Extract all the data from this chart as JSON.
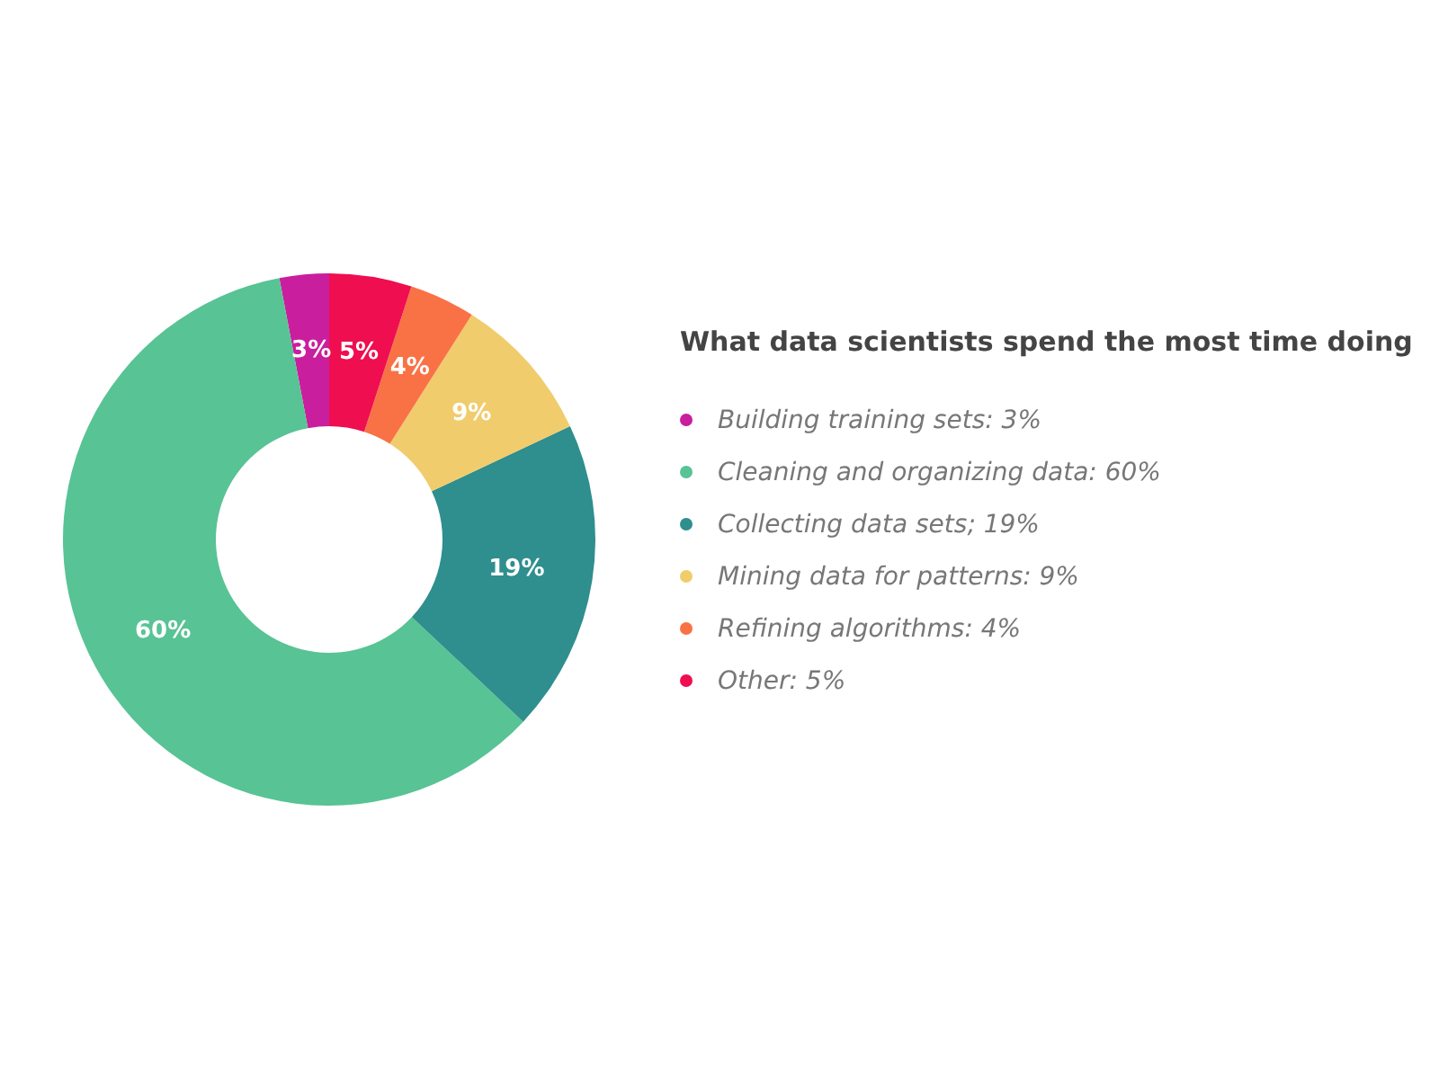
{
  "chart_data": {
    "type": "donut",
    "title": "What data scientists spend the most time doing",
    "categories": [
      "Building training sets: 3%",
      "Cleaning and organizing data: 60%",
      "Collecting data sets; 19%",
      "Mining data for patterns: 9%",
      "Refining algorithms: 4%",
      "Other: 5%"
    ],
    "values": [
      3,
      60,
      19,
      9,
      4,
      5
    ],
    "value_labels": [
      "3%",
      "60%",
      "19%",
      "9%",
      "4%",
      "5%"
    ],
    "colors": [
      "#c91e9e",
      "#58c394",
      "#2f8e8e",
      "#f0cc6c",
      "#f97245",
      "#ef0e4f"
    ],
    "legend": "right"
  }
}
